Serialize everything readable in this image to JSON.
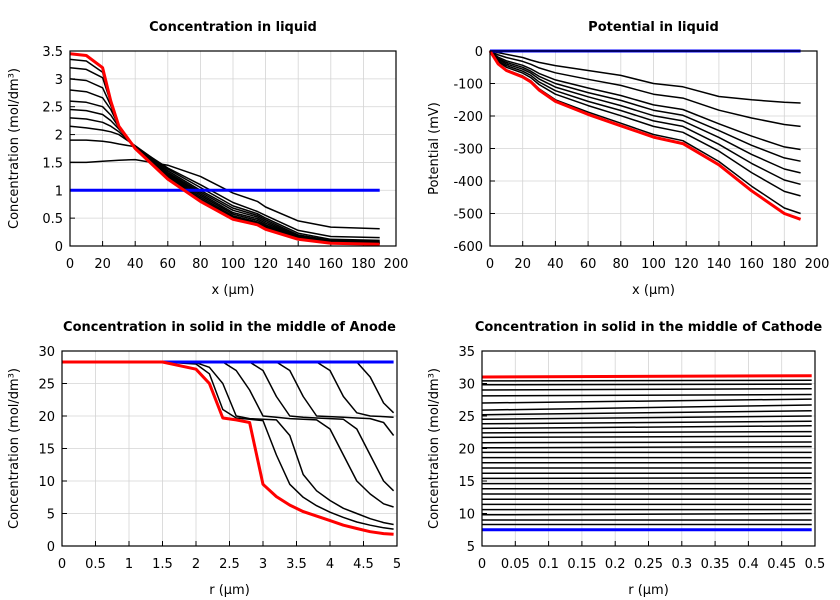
{
  "chart_data": [
    {
      "type": "line",
      "title": "Concentration in liquid",
      "xlabel": "x (µm)",
      "ylabel": "Concentration (mol/dm³)",
      "xlim": [
        0,
        200
      ],
      "ylim": [
        0,
        3.5
      ],
      "xticks": [
        "0",
        "20",
        "40",
        "60",
        "80",
        "100",
        "120",
        "140",
        "160",
        "180",
        "200"
      ],
      "yticks": [
        "0",
        "0.5",
        "1",
        "1.5",
        "2",
        "2.5",
        "3",
        "3.5"
      ],
      "grid": true,
      "x": [
        0,
        10,
        20,
        25,
        30,
        40,
        60,
        80,
        100,
        115,
        120,
        140,
        160,
        190
      ],
      "series": [
        {
          "color": "#000000",
          "values": [
            1.5,
            1.5,
            1.52,
            1.53,
            1.54,
            1.55,
            1.45,
            1.25,
            0.95,
            0.8,
            0.7,
            0.45,
            0.34,
            0.31
          ]
        },
        {
          "color": "#000000",
          "values": [
            1.9,
            1.9,
            1.88,
            1.86,
            1.83,
            1.78,
            1.4,
            1.1,
            0.78,
            0.62,
            0.55,
            0.28,
            0.17,
            0.15
          ]
        },
        {
          "color": "#000000",
          "values": [
            2.15,
            2.12,
            2.08,
            2.05,
            2.0,
            1.8,
            1.38,
            1.05,
            0.72,
            0.58,
            0.5,
            0.23,
            0.12,
            0.1
          ]
        },
        {
          "color": "#000000",
          "values": [
            2.3,
            2.28,
            2.22,
            2.15,
            2.05,
            1.79,
            1.35,
            1.0,
            0.68,
            0.55,
            0.47,
            0.2,
            0.1,
            0.08
          ]
        },
        {
          "color": "#000000",
          "values": [
            2.45,
            2.43,
            2.36,
            2.25,
            2.1,
            1.78,
            1.32,
            0.97,
            0.64,
            0.52,
            0.44,
            0.18,
            0.09,
            0.07
          ]
        },
        {
          "color": "#000000",
          "values": [
            2.6,
            2.58,
            2.5,
            2.35,
            2.13,
            1.77,
            1.3,
            0.94,
            0.6,
            0.49,
            0.41,
            0.17,
            0.08,
            0.06
          ]
        },
        {
          "color": "#000000",
          "values": [
            2.8,
            2.77,
            2.66,
            2.45,
            2.15,
            1.77,
            1.28,
            0.91,
            0.57,
            0.46,
            0.38,
            0.16,
            0.07,
            0.05
          ]
        },
        {
          "color": "#000000",
          "values": [
            3.0,
            2.97,
            2.84,
            2.52,
            2.16,
            1.76,
            1.26,
            0.88,
            0.54,
            0.43,
            0.36,
            0.15,
            0.06,
            0.05
          ]
        },
        {
          "color": "#000000",
          "values": [
            3.2,
            3.17,
            3.02,
            2.57,
            2.16,
            1.76,
            1.24,
            0.85,
            0.52,
            0.41,
            0.34,
            0.14,
            0.06,
            0.04
          ]
        },
        {
          "color": "#000000",
          "values": [
            3.35,
            3.32,
            3.12,
            2.6,
            2.16,
            1.75,
            1.22,
            0.82,
            0.5,
            0.39,
            0.32,
            0.13,
            0.05,
            0.04
          ]
        },
        {
          "color": "#0000ff",
          "values": [
            1,
            1,
            1,
            1,
            1,
            1,
            1,
            1,
            1,
            1,
            1,
            1,
            1,
            1
          ]
        },
        {
          "color": "#ff0000",
          "values": [
            3.45,
            3.42,
            3.2,
            2.6,
            2.15,
            1.75,
            1.2,
            0.8,
            0.48,
            0.38,
            0.3,
            0.12,
            0.05,
            0.03
          ]
        }
      ]
    },
    {
      "type": "line",
      "title": "Potential in liquid",
      "xlabel": "x (µm)",
      "ylabel": "Potential (mV)",
      "xlim": [
        0,
        200
      ],
      "ylim": [
        -600,
        0
      ],
      "xticks": [
        "0",
        "20",
        "40",
        "60",
        "80",
        "100",
        "120",
        "140",
        "160",
        "180",
        "200"
      ],
      "yticks": [
        "-600",
        "-500",
        "-400",
        "-300",
        "-200",
        "-100",
        "0"
      ],
      "grid": true,
      "x": [
        0,
        5,
        10,
        20,
        25,
        30,
        40,
        60,
        80,
        100,
        118,
        140,
        160,
        180,
        190
      ],
      "series": [
        {
          "color": "#000000",
          "values": [
            0,
            -5,
            -10,
            -20,
            -28,
            -35,
            -45,
            -60,
            -75,
            -100,
            -110,
            -140,
            -150,
            -158,
            -160
          ]
        },
        {
          "color": "#000000",
          "values": [
            0,
            -12,
            -20,
            -32,
            -41,
            -52,
            -67,
            -87,
            -106,
            -133,
            -145,
            -182,
            -206,
            -226,
            -232
          ]
        },
        {
          "color": "#000000",
          "values": [
            0,
            -19,
            -30,
            -44,
            -55,
            -69,
            -89,
            -114,
            -137,
            -166,
            -180,
            -224,
            -262,
            -295,
            -303
          ]
        },
        {
          "color": "#000000",
          "values": [
            0,
            -23,
            -35,
            -50,
            -62,
            -78,
            -100,
            -128,
            -152,
            -182,
            -198,
            -245,
            -290,
            -329,
            -339
          ]
        },
        {
          "color": "#000000",
          "values": [
            0,
            -26,
            -40,
            -56,
            -68,
            -86,
            -111,
            -141,
            -168,
            -199,
            -215,
            -266,
            -318,
            -363,
            -375
          ]
        },
        {
          "color": "#000000",
          "values": [
            0,
            -30,
            -45,
            -62,
            -75,
            -95,
            -122,
            -155,
            -183,
            -215,
            -232,
            -287,
            -346,
            -397,
            -410
          ]
        },
        {
          "color": "#000000",
          "values": [
            0,
            -33,
            -50,
            -68,
            -82,
            -103,
            -133,
            -168,
            -199,
            -232,
            -250,
            -308,
            -374,
            -432,
            -446
          ]
        },
        {
          "color": "#000000",
          "values": [
            0,
            -38,
            -58,
            -77,
            -92,
            -116,
            -150,
            -188,
            -222,
            -257,
            -276,
            -340,
            -416,
            -483,
            -500
          ]
        },
        {
          "color": "#0000ff",
          "values": [
            0,
            0,
            0,
            0,
            0,
            0,
            0,
            0,
            0,
            0,
            0,
            0,
            0,
            0,
            0
          ]
        },
        {
          "color": "#ff0000",
          "values": [
            0,
            -40,
            -60,
            -80,
            -95,
            -120,
            -155,
            -195,
            -230,
            -265,
            -285,
            -350,
            -430,
            -500,
            -518
          ]
        }
      ]
    },
    {
      "type": "line",
      "title": "Concentration in solid in the middle of Anode",
      "xlabel": "r (µm)",
      "ylabel": "Concentration (mol/dm³)",
      "xlim": [
        0,
        5
      ],
      "ylim": [
        0,
        30
      ],
      "xticks": [
        "0",
        "0.5",
        "1",
        "1.5",
        "2",
        "2.5",
        "3",
        "3.5",
        "4",
        "4.5",
        "5"
      ],
      "yticks": [
        "0",
        "5",
        "10",
        "15",
        "20",
        "25",
        "30"
      ],
      "grid": true,
      "x": [
        0,
        1.5,
        2,
        2.2,
        2.4,
        2.6,
        2.8,
        3,
        3.2,
        3.4,
        3.6,
        3.8,
        4,
        4.2,
        4.4,
        4.6,
        4.8,
        4.95
      ],
      "series": [
        {
          "color": "#000000",
          "values": [
            28.3,
            28.3,
            28.3,
            28.3,
            28.3,
            28.3,
            28.3,
            28.3,
            28.3,
            28.3,
            28.3,
            28.3,
            28.3,
            28.3,
            28.3,
            26,
            22,
            20.5
          ]
        },
        {
          "color": "#000000",
          "values": [
            28.3,
            28.3,
            28.3,
            28.3,
            28.3,
            28.3,
            28.3,
            28.3,
            28.3,
            28.3,
            28.3,
            28.3,
            27,
            23,
            20.5,
            20,
            19.9,
            19.8
          ]
        },
        {
          "color": "#000000",
          "values": [
            28.3,
            28.3,
            28.3,
            28.3,
            28.3,
            28.3,
            28.3,
            28.3,
            28.3,
            27,
            23,
            20,
            19.9,
            19.8,
            19.7,
            19.6,
            19,
            17
          ]
        },
        {
          "color": "#000000",
          "values": [
            28.3,
            28.3,
            28.3,
            28.3,
            28.3,
            28.3,
            28.3,
            27,
            23,
            20,
            19.8,
            19.7,
            19.6,
            19.5,
            18,
            14,
            10,
            8.5
          ]
        },
        {
          "color": "#000000",
          "values": [
            28.3,
            28.3,
            28.3,
            28.3,
            28.3,
            27,
            24,
            20,
            19.8,
            19.6,
            19.5,
            19.4,
            18,
            14,
            10,
            8,
            6.5,
            6
          ]
        },
        {
          "color": "#000000",
          "values": [
            28.3,
            28.3,
            28.2,
            27.5,
            25,
            20,
            19.6,
            19.5,
            19.4,
            17,
            11,
            8.5,
            7,
            5.8,
            5,
            4.2,
            3.6,
            3.3
          ]
        },
        {
          "color": "#000000",
          "values": [
            28.3,
            28.3,
            28,
            26.5,
            21,
            19.7,
            19.5,
            19.3,
            14,
            9.5,
            7.5,
            6.2,
            5.2,
            4.4,
            3.7,
            3.2,
            2.8,
            2.6
          ]
        },
        {
          "color": "#0000ff",
          "values": [
            28.3,
            28.3,
            28.3,
            28.3,
            28.3,
            28.3,
            28.3,
            28.3,
            28.3,
            28.3,
            28.3,
            28.3,
            28.3,
            28.3,
            28.3,
            28.3,
            28.3,
            28.3
          ]
        },
        {
          "color": "#ff0000",
          "values": [
            28.3,
            28.3,
            27.2,
            25,
            19.7,
            19.4,
            19,
            9.5,
            7.6,
            6.3,
            5.3,
            4.6,
            3.9,
            3.2,
            2.7,
            2.2,
            1.9,
            1.8
          ]
        }
      ]
    },
    {
      "type": "line",
      "title": "Concentration in solid in the middle of Cathode",
      "xlabel": "r (µm)",
      "ylabel": "Concentration (mol/dm³)",
      "xlim": [
        0,
        0.5
      ],
      "ylim": [
        5,
        35
      ],
      "xticks": [
        "0",
        "0.05",
        "0.1",
        "0.15",
        "0.2",
        "0.25",
        "0.3",
        "0.35",
        "0.4",
        "0.45",
        "0.5"
      ],
      "yticks": [
        "5",
        "10",
        "15",
        "20",
        "25",
        "30",
        "35"
      ],
      "grid": true,
      "x": [
        0,
        0.495
      ],
      "series": [
        {
          "color": "#000000",
          "values": [
            8.3,
            8.3
          ]
        },
        {
          "color": "#000000",
          "values": [
            9.0,
            9.0
          ]
        },
        {
          "color": "#000000",
          "values": [
            9.8,
            10.0
          ]
        },
        {
          "color": "#000000",
          "values": [
            10.6,
            10.6
          ]
        },
        {
          "color": "#000000",
          "values": [
            11.4,
            11.4
          ]
        },
        {
          "color": "#000000",
          "values": [
            12.2,
            12.2
          ]
        },
        {
          "color": "#000000",
          "values": [
            13.0,
            13.0
          ]
        },
        {
          "color": "#000000",
          "values": [
            13.8,
            13.8
          ]
        },
        {
          "color": "#000000",
          "values": [
            14.6,
            14.6
          ]
        },
        {
          "color": "#000000",
          "values": [
            15.4,
            15.5
          ]
        },
        {
          "color": "#000000",
          "values": [
            16.2,
            16.2
          ]
        },
        {
          "color": "#000000",
          "values": [
            17.0,
            17.0
          ]
        },
        {
          "color": "#000000",
          "values": [
            17.8,
            17.8
          ]
        },
        {
          "color": "#000000",
          "values": [
            18.6,
            18.6
          ]
        },
        {
          "color": "#000000",
          "values": [
            19.4,
            19.4
          ]
        },
        {
          "color": "#000000",
          "values": [
            20.1,
            20.3
          ]
        },
        {
          "color": "#000000",
          "values": [
            20.9,
            21.0
          ]
        },
        {
          "color": "#000000",
          "values": [
            21.7,
            21.9
          ]
        },
        {
          "color": "#000000",
          "values": [
            22.4,
            22.6
          ]
        },
        {
          "color": "#000000",
          "values": [
            23.1,
            23.5
          ]
        },
        {
          "color": "#000000",
          "values": [
            23.8,
            24.2
          ]
        },
        {
          "color": "#000000",
          "values": [
            24.5,
            25.0
          ]
        },
        {
          "color": "#000000",
          "values": [
            25.2,
            25.8
          ]
        },
        {
          "color": "#000000",
          "values": [
            25.9,
            26.7
          ]
        },
        {
          "color": "#000000",
          "values": [
            27.0,
            27.6
          ]
        },
        {
          "color": "#000000",
          "values": [
            28.1,
            28.3
          ]
        },
        {
          "color": "#000000",
          "values": [
            29.0,
            29.2
          ]
        },
        {
          "color": "#000000",
          "values": [
            29.8,
            29.9
          ]
        },
        {
          "color": "#000000",
          "values": [
            30.4,
            30.5
          ]
        },
        {
          "color": "#0000ff",
          "values": [
            7.5,
            7.5
          ]
        },
        {
          "color": "#ff0000",
          "values": [
            31.0,
            31.2
          ]
        }
      ]
    }
  ]
}
